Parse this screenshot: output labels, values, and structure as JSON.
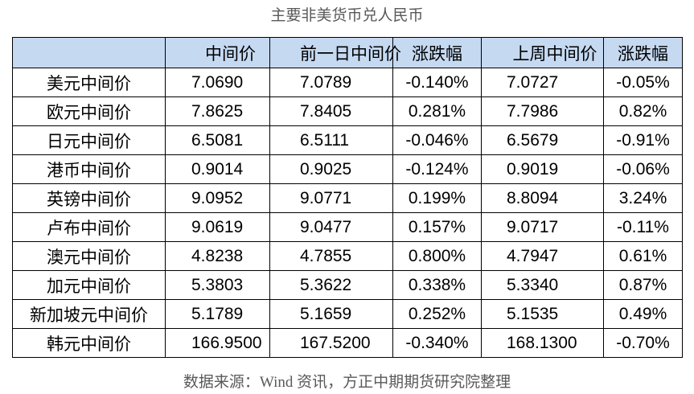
{
  "title": "主要非美货币兑人民币",
  "table": {
    "header": [
      "",
      "中间价",
      "前一日中间价",
      "涨跌幅",
      "上周中间价",
      "涨跌幅"
    ],
    "rows": [
      [
        "美元中间价",
        "7.0690",
        "7.0789",
        "-0.140%",
        "7.0727",
        "-0.05%"
      ],
      [
        "欧元中间价",
        "7.8625",
        "7.8405",
        "0.281%",
        "7.7986",
        "0.82%"
      ],
      [
        "日元中间价",
        "6.5081",
        "6.5111",
        "-0.046%",
        "6.5679",
        "-0.91%"
      ],
      [
        "港币中间价",
        "0.9014",
        "0.9025",
        "-0.124%",
        "0.9019",
        "-0.06%"
      ],
      [
        "英镑中间价",
        "9.0952",
        "9.0771",
        "0.199%",
        "8.8094",
        "3.24%"
      ],
      [
        "卢布中间价",
        "9.0619",
        "9.0477",
        "0.157%",
        "9.0717",
        "-0.11%"
      ],
      [
        "澳元中间价",
        "4.8238",
        "4.7855",
        "0.800%",
        "4.7947",
        "0.61%"
      ],
      [
        "加元中间价",
        "5.3803",
        "5.3622",
        "0.338%",
        "5.3340",
        "0.87%"
      ],
      [
        "新加坡元中间价",
        "5.1789",
        "5.1659",
        "0.252%",
        "5.1535",
        "0.49%"
      ],
      [
        "韩元中间价",
        "166.9500",
        "167.5200",
        "-0.340%",
        "168.1300",
        "-0.70%"
      ]
    ]
  },
  "source": "数据来源：Wind 资讯，方正中期期货研究院整理"
}
